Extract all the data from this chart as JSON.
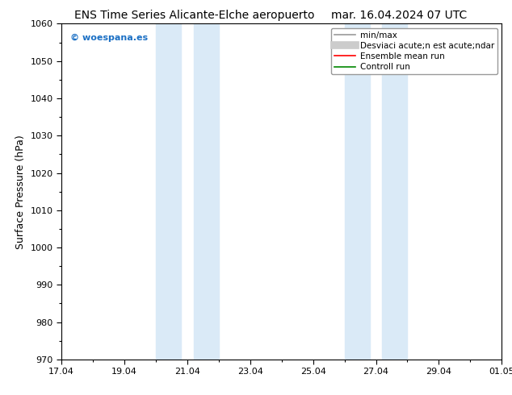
{
  "title_left": "ENS Time Series Alicante-Elche aeropuerto",
  "title_right": "mar. 16.04.2024 07 UTC",
  "ylabel": "Surface Pressure (hPa)",
  "ylim": [
    970,
    1060
  ],
  "yticks": [
    970,
    980,
    990,
    1000,
    1010,
    1020,
    1030,
    1040,
    1050,
    1060
  ],
  "xtick_labels": [
    "17.04",
    "19.04",
    "21.04",
    "23.04",
    "25.04",
    "27.04",
    "29.04",
    "01.05"
  ],
  "xtick_positions": [
    0,
    2,
    4,
    6,
    8,
    10,
    12,
    14
  ],
  "shaded_bands": [
    {
      "x_start": 3.0,
      "x_end": 3.8
    },
    {
      "x_start": 4.2,
      "x_end": 5.0
    },
    {
      "x_start": 9.0,
      "x_end": 9.8
    },
    {
      "x_start": 10.2,
      "x_end": 11.0
    }
  ],
  "band_color": "#daeaf7",
  "background_color": "#ffffff",
  "watermark": "© woespana.es",
  "watermark_color": "#1a6fc4",
  "legend_label_minmax": "min/max",
  "legend_label_std": "Desviaci acute;n est acute;ndar",
  "legend_label_ens": "Ensemble mean run",
  "legend_label_ctrl": "Controll run",
  "legend_color_minmax": "#999999",
  "legend_color_std": "#cccccc",
  "legend_color_ens": "#ff0000",
  "legend_color_ctrl": "#008800",
  "spine_color": "#000000",
  "title_fontsize": 10,
  "axis_fontsize": 9,
  "tick_fontsize": 8,
  "legend_fontsize": 7.5
}
